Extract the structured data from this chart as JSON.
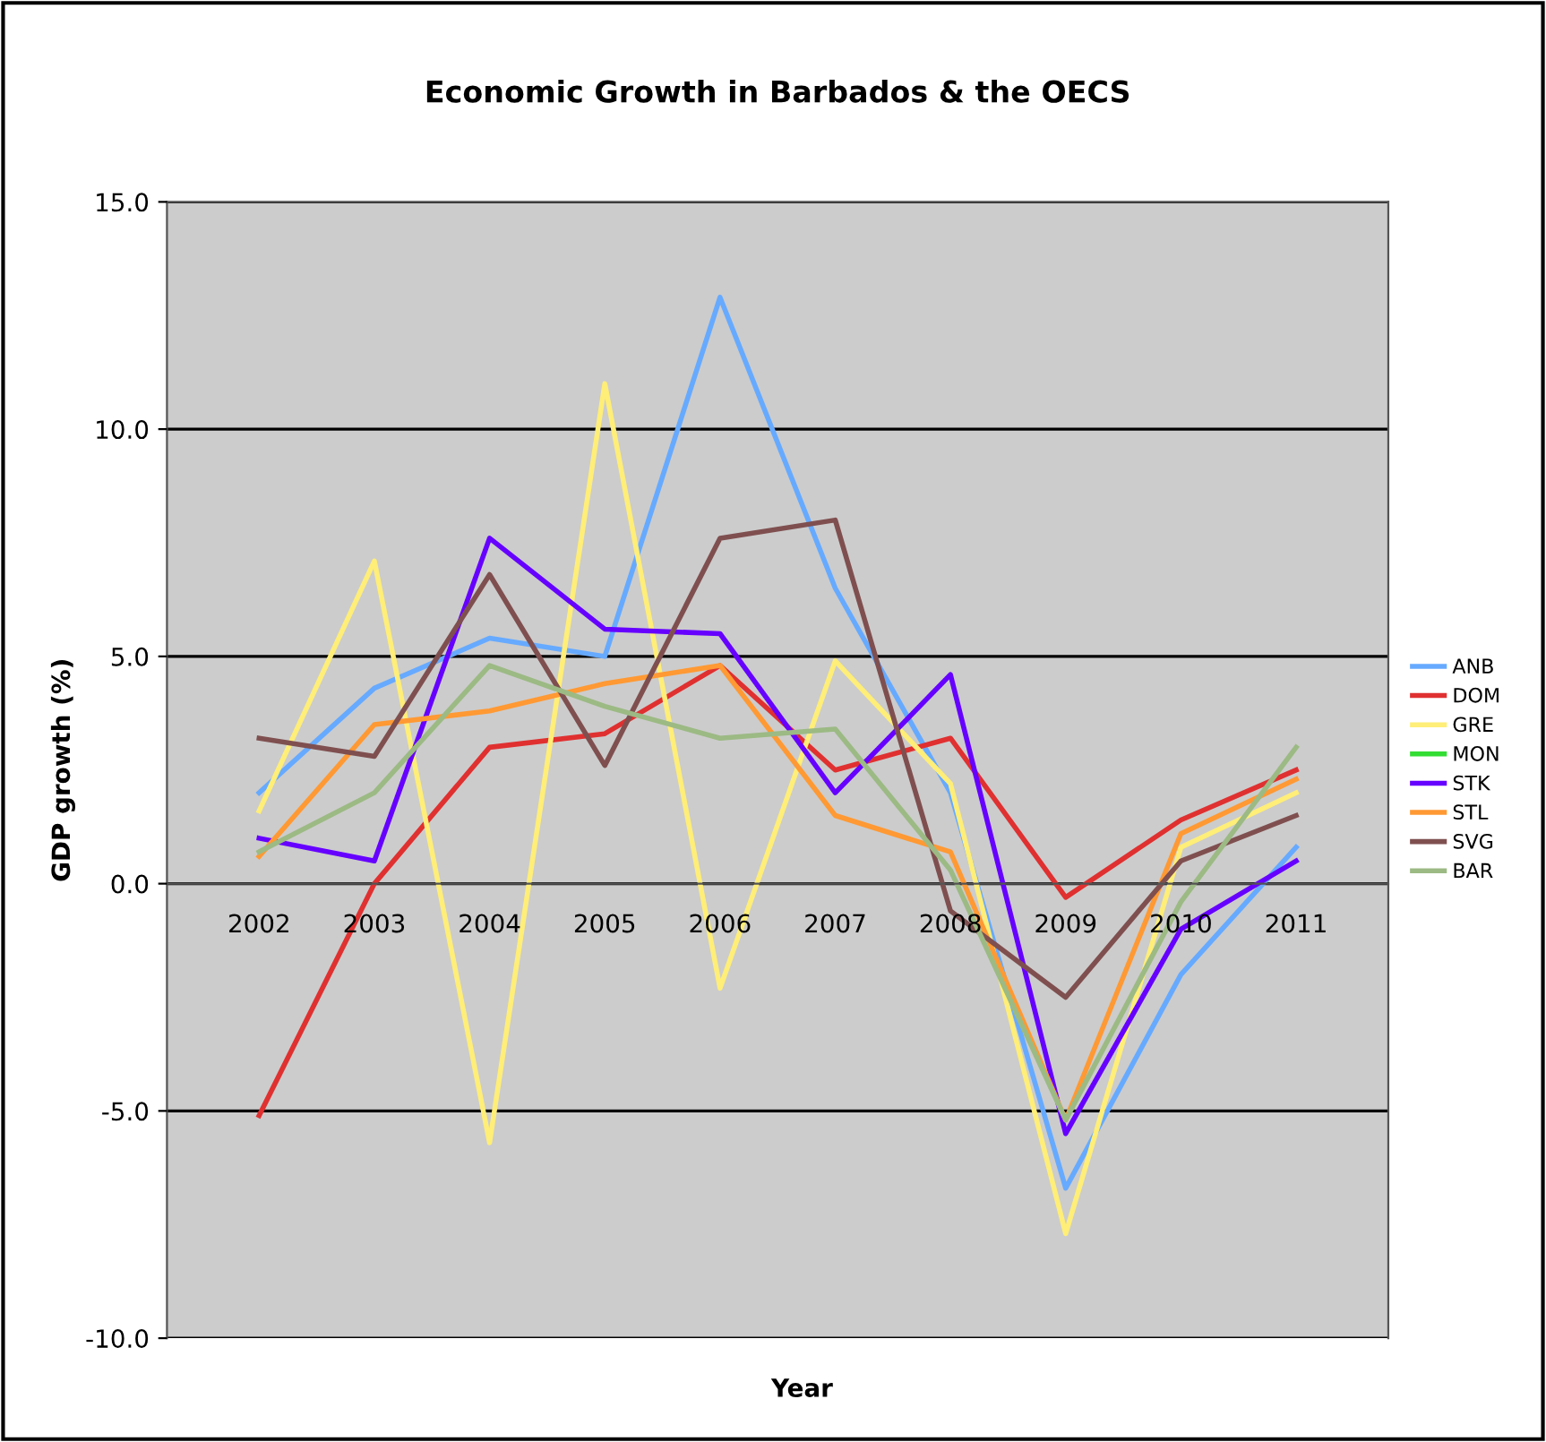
{
  "chart_data": {
    "type": "line",
    "title": "Economic Growth in Barbados & the OECS",
    "xlabel": "Year",
    "ylabel": "GDP growth (%)",
    "categories": [
      "2002",
      "2003",
      "2004",
      "2005",
      "2006",
      "2007",
      "2008",
      "2009",
      "2010",
      "2011"
    ],
    "series": [
      {
        "name": "ANB",
        "color": "#66aaff",
        "values": [
          2.0,
          4.3,
          5.4,
          5.0,
          12.9,
          6.5,
          2.0,
          -6.7,
          -2.0,
          0.8
        ]
      },
      {
        "name": "DOM",
        "color": "#e03030",
        "values": [
          -5.1,
          0.0,
          3.0,
          3.3,
          4.8,
          2.5,
          3.2,
          -0.3,
          1.4,
          2.5
        ]
      },
      {
        "name": "GRE",
        "color": "#ffee77",
        "values": [
          1.6,
          7.1,
          -5.7,
          11.0,
          -2.3,
          4.9,
          2.2,
          -7.7,
          0.8,
          2.0
        ]
      },
      {
        "name": "MON",
        "color": "#33dd33",
        "values": [
          null,
          null,
          null,
          null,
          null,
          null,
          null,
          null,
          null,
          null
        ]
      },
      {
        "name": "STK",
        "color": "#6600ff",
        "values": [
          1.0,
          0.5,
          7.6,
          5.6,
          5.5,
          2.0,
          4.6,
          -5.5,
          -1.0,
          0.5
        ]
      },
      {
        "name": "STL",
        "color": "#ff9933",
        "values": [
          0.6,
          3.5,
          3.8,
          4.4,
          4.8,
          1.5,
          0.7,
          -5.2,
          1.1,
          2.3
        ]
      },
      {
        "name": "SVG",
        "color": "#7f4f4f",
        "values": [
          3.2,
          2.8,
          6.8,
          2.6,
          7.6,
          8.0,
          -0.6,
          -2.5,
          0.5,
          1.5
        ]
      },
      {
        "name": "BAR",
        "color": "#9cba84",
        "values": [
          0.7,
          2.0,
          4.8,
          3.9,
          3.2,
          3.4,
          0.3,
          -5.2,
          -0.4,
          3.0
        ]
      }
    ],
    "ylim": [
      -10,
      15
    ],
    "yticks": [
      {
        "value": -10,
        "label": "-10.0"
      },
      {
        "value": -5,
        "label": "-5.0"
      },
      {
        "value": 0,
        "label": "0.0"
      },
      {
        "value": 5,
        "label": "5.0"
      },
      {
        "value": 10,
        "label": "10.0"
      },
      {
        "value": 15,
        "label": "15.0"
      }
    ],
    "grid": "y",
    "legend": "right",
    "marker": "none",
    "line_style": "solid"
  }
}
